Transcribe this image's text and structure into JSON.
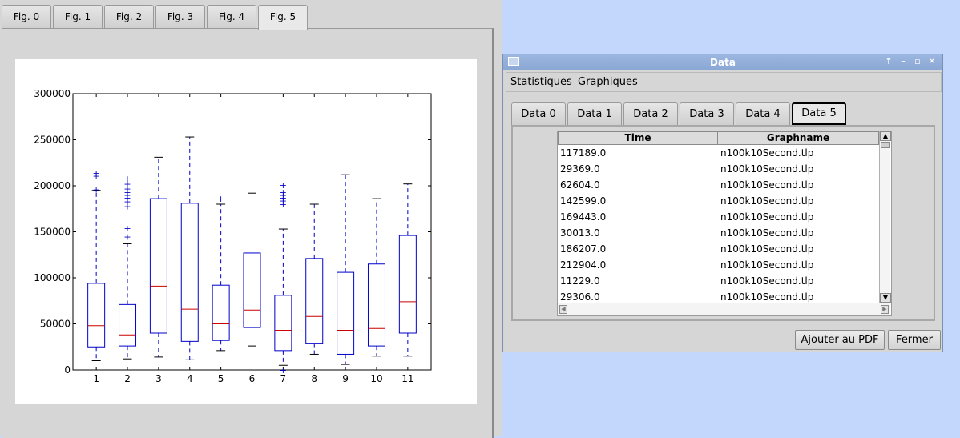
{
  "figure_tabs": [
    {
      "label": "Fig. 0"
    },
    {
      "label": "Fig. 1"
    },
    {
      "label": "Fig. 2"
    },
    {
      "label": "Fig. 3"
    },
    {
      "label": "Fig. 4"
    },
    {
      "label": "Fig. 5"
    }
  ],
  "active_figure_tab": 5,
  "chart_data": {
    "type": "boxplot",
    "title": "",
    "xlabel": "",
    "ylabel": "",
    "ylim": [
      0,
      300000
    ],
    "yticks": [
      0,
      50000,
      100000,
      150000,
      200000,
      250000,
      300000
    ],
    "ytick_labels": [
      "0",
      "50000",
      "100000",
      "150000",
      "200000",
      "250000",
      "300000"
    ],
    "categories": [
      "1",
      "2",
      "3",
      "4",
      "5",
      "6",
      "7",
      "8",
      "9",
      "10",
      "11"
    ],
    "colors": {
      "box": "#0000cc",
      "median": "#cc0000",
      "whisker": "#0000cc",
      "cap": "#000000",
      "flier": "#0000cc"
    },
    "boxes": [
      {
        "label": "1",
        "whislo": 10000,
        "q1": 25000,
        "median": 48000,
        "q3": 94000,
        "whishi": 195000,
        "fliers": [
          196000,
          211000,
          214000
        ]
      },
      {
        "label": "2",
        "whislo": 12000,
        "q1": 26000,
        "median": 38000,
        "q3": 71000,
        "whishi": 137000,
        "fliers": [
          145000,
          154000,
          178000,
          183000,
          187000,
          190000,
          193000,
          197000,
          202000,
          208000
        ]
      },
      {
        "label": "3",
        "whislo": 14000,
        "q1": 40000,
        "median": 91000,
        "q3": 186000,
        "whishi": 231000,
        "fliers": []
      },
      {
        "label": "4",
        "whislo": 11000,
        "q1": 31000,
        "median": 66000,
        "q3": 181000,
        "whishi": 253000,
        "fliers": []
      },
      {
        "label": "5",
        "whislo": 21000,
        "q1": 32000,
        "median": 50000,
        "q3": 92000,
        "whishi": 180000,
        "fliers": [
          186000
        ]
      },
      {
        "label": "6",
        "whislo": 26000,
        "q1": 46000,
        "median": 65000,
        "q3": 127000,
        "whishi": 192000,
        "fliers": []
      },
      {
        "label": "7",
        "whislo": 5000,
        "q1": 21000,
        "median": 43000,
        "q3": 81000,
        "whishi": 153000,
        "fliers": [
          0,
          180000,
          184000,
          187000,
          190000,
          193000,
          201000
        ]
      },
      {
        "label": "8",
        "whislo": 17000,
        "q1": 29000,
        "median": 58000,
        "q3": 121000,
        "whishi": 180000,
        "fliers": []
      },
      {
        "label": "9",
        "whislo": 6000,
        "q1": 17000,
        "median": 43000,
        "q3": 106000,
        "whishi": 212000,
        "fliers": []
      },
      {
        "label": "10",
        "whislo": 15000,
        "q1": 26000,
        "median": 45000,
        "q3": 115000,
        "whishi": 186000,
        "fliers": []
      },
      {
        "label": "11",
        "whislo": 15000,
        "q1": 40000,
        "median": 74000,
        "q3": 146000,
        "whishi": 202000,
        "fliers": []
      }
    ]
  },
  "dialog": {
    "title": "Data",
    "titlebar_buttons": [
      {
        "name": "shade-button",
        "glyph": "↑"
      },
      {
        "name": "minimize-button",
        "glyph": "–"
      },
      {
        "name": "maximize-button",
        "glyph": "▫"
      },
      {
        "name": "close-button",
        "glyph": "✕"
      }
    ],
    "menu": [
      {
        "label": "Statistiques"
      },
      {
        "label": "Graphiques"
      }
    ],
    "data_tabs": [
      {
        "label": "Data 0"
      },
      {
        "label": "Data 1"
      },
      {
        "label": "Data 2"
      },
      {
        "label": "Data 3"
      },
      {
        "label": "Data 4"
      },
      {
        "label": "Data 5"
      }
    ],
    "active_data_tab": 5,
    "table": {
      "columns": [
        "Time",
        "Graphname"
      ],
      "rows": [
        [
          "117189.0",
          "n100k10Second.tlp"
        ],
        [
          "29369.0",
          "n100k10Second.tlp"
        ],
        [
          "62604.0",
          "n100k10Second.tlp"
        ],
        [
          "142599.0",
          "n100k10Second.tlp"
        ],
        [
          "169443.0",
          "n100k10Second.tlp"
        ],
        [
          "30013.0",
          "n100k10Second.tlp"
        ],
        [
          "186207.0",
          "n100k10Second.tlp"
        ],
        [
          "212904.0",
          "n100k10Second.tlp"
        ],
        [
          "11229.0",
          "n100k10Second.tlp"
        ],
        [
          "29306.0",
          "n100k10Second.tlp"
        ]
      ]
    },
    "buttons": {
      "add_pdf": "Ajouter au PDF",
      "close": "Fermer"
    }
  }
}
